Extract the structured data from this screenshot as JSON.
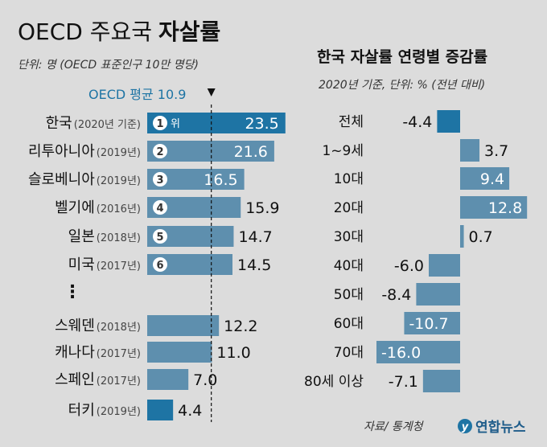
{
  "left": {
    "title_light": "OECD 주요국",
    "title_bold": "자살률",
    "unit": "단위: 명 (OECD 표준인구 10만 명당)",
    "avg_label": "OECD 평균 10.9",
    "avg_value": 10.9,
    "rank_suffix": "위",
    "ellipsis": "⋮"
  },
  "right": {
    "title": "한국 자살률 연령별 증감률",
    "unit": "2020년 기준, 단위: % (전년 대비)"
  },
  "footer": {
    "source": "자료/ 통계청",
    "logo_text": "연합뉴스",
    "logo_mark": "y"
  },
  "colors": {
    "background": "#dcdcdc",
    "bar": "#5e8fae",
    "bar_highlight": "#1e74a4",
    "avg_line": "#111111"
  },
  "chart_data": [
    {
      "type": "bar",
      "orientation": "horizontal",
      "title": "OECD 주요국 자살률",
      "unit": "단위: 명 (OECD 표준인구 10만 명당)",
      "reference_line": {
        "label": "OECD 평균 10.9",
        "value": 10.9
      },
      "categories": [
        {
          "country": "한국",
          "year": "(2020년 기준)",
          "rank": "1",
          "value": 23.5,
          "label": "23.5",
          "highlight": true
        },
        {
          "country": "리투아니아",
          "year": "(2019년)",
          "rank": "2",
          "value": 21.6,
          "label": "21.6",
          "highlight": false
        },
        {
          "country": "슬로베니아",
          "year": "(2019년)",
          "rank": "3",
          "value": 16.5,
          "label": "16.5",
          "highlight": false
        },
        {
          "country": "벨기에",
          "year": "(2016년)",
          "rank": "4",
          "value": 15.9,
          "label": "15.9",
          "highlight": false
        },
        {
          "country": "일본",
          "year": "(2018년)",
          "rank": "5",
          "value": 14.7,
          "label": "14.7",
          "highlight": false
        },
        {
          "country": "미국",
          "year": "(2017년)",
          "rank": "6",
          "value": 14.5,
          "label": "14.5",
          "highlight": false
        },
        {
          "country": "스웨덴",
          "year": "(2018년)",
          "rank": "",
          "value": 12.2,
          "label": "12.2",
          "highlight": false
        },
        {
          "country": "캐나다",
          "year": "(2017년)",
          "rank": "",
          "value": 11.0,
          "label": "11.0",
          "highlight": false
        },
        {
          "country": "스페인",
          "year": "(2017년)",
          "rank": "",
          "value": 7.0,
          "label": "7.0",
          "highlight": false
        },
        {
          "country": "터키",
          "year": "(2019년)",
          "rank": "",
          "value": 4.4,
          "label": "4.4",
          "highlight": true
        }
      ]
    },
    {
      "type": "bar",
      "orientation": "horizontal-diverging",
      "title": "한국 자살률 연령별 증감률",
      "unit": "2020년 기준, 단위: % (전년 대비)",
      "categories": [
        {
          "name": "전체",
          "value": -4.4,
          "label": "-4.4",
          "highlight": true
        },
        {
          "name": "1~9세",
          "value": 3.7,
          "label": "3.7",
          "highlight": false
        },
        {
          "name": "10대",
          "value": 9.4,
          "label": "9.4",
          "highlight": false
        },
        {
          "name": "20대",
          "value": 12.8,
          "label": "12.8",
          "highlight": false
        },
        {
          "name": "30대",
          "value": 0.7,
          "label": "0.7",
          "highlight": false
        },
        {
          "name": "40대",
          "value": -6.0,
          "label": "-6.0",
          "highlight": false
        },
        {
          "name": "50대",
          "value": -8.4,
          "label": "-8.4",
          "highlight": false
        },
        {
          "name": "60대",
          "value": -10.7,
          "label": "-10.7",
          "highlight": false
        },
        {
          "name": "70대",
          "value": -16.0,
          "label": "-16.0",
          "highlight": false
        },
        {
          "name": "80세 이상",
          "value": -7.1,
          "label": "-7.1",
          "highlight": false
        }
      ]
    }
  ]
}
